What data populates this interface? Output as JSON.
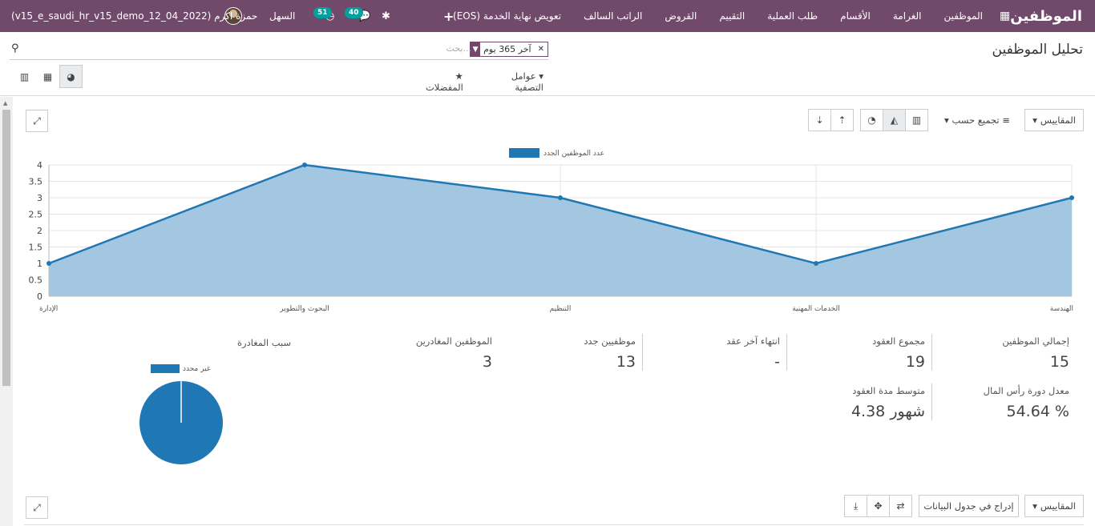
{
  "navbar": {
    "app_title": "الموظفين",
    "menu": [
      "الموظفين",
      "الغرامة",
      "الأقسام",
      "طلب العملية",
      "التقييم",
      "القروض",
      "الراتب السالف",
      "تعويض نهاية الخدمة (EOS)"
    ],
    "plus": "+",
    "company": "السهل",
    "user": "حمزة اكرم (v15_e_saudi_hr_v15_demo_12_04_2022)",
    "messages_count": "40",
    "activities_count": "51",
    "icons": [
      "grid-icon",
      "plus-icon",
      "bug-icon",
      "chat-icon",
      "clock-icon",
      "avatar"
    ]
  },
  "control_panel": {
    "title": "تحليل الموظفين",
    "search_placeholder": "بحث...",
    "facet_value": "آخر 365 يوم",
    "filters_label": "عوامل التصفية",
    "favorites_label": "المفضلات",
    "views": [
      "dashboard",
      "pivot",
      "graph"
    ]
  },
  "section1": {
    "measures_label": "المقاييس",
    "group_by_label": "تجميع حسب",
    "chart_types": [
      "bar-chart-icon",
      "area-chart-icon",
      "pie-chart-icon"
    ],
    "sort_icons": [
      "sort-desc-icon",
      "sort-asc-icon"
    ]
  },
  "chart_data": [
    {
      "type": "line",
      "area": true,
      "categories": [
        "الإدارة",
        "البحوث والتطوير",
        "التنظيم",
        "الخدمات المهنية",
        "الهندسة"
      ],
      "series": [
        {
          "name": "عدد الموظفين الجدد",
          "values": [
            1,
            4,
            3,
            1,
            3
          ]
        }
      ],
      "yticks": [
        "0",
        "0.5",
        "1",
        "1.5",
        "2",
        "2.5",
        "3",
        "3.5",
        "4"
      ],
      "ylim": [
        0,
        4
      ],
      "grid": true,
      "legend": "top-center",
      "color": "#1f77b4",
      "fill": "#a3c6e1"
    },
    {
      "type": "pie",
      "title": "سبب المغادرة",
      "labels": [
        "غير محدد"
      ],
      "values": [
        3
      ],
      "legend": "top",
      "color": "#1f77b4"
    }
  ],
  "kpis": [
    {
      "label": "إجمالي الموظفين",
      "value": "15"
    },
    {
      "label": "مجموع العقود",
      "value": "19"
    },
    {
      "label": "انتهاء آخر عقد",
      "value": "-"
    },
    {
      "label": "موظفيين جدد",
      "value": "13"
    },
    {
      "label": "الموظفين المغادرين",
      "value": "3"
    },
    {
      "label": "معدل دورة رأس المال",
      "value": "54.64 %"
    },
    {
      "label": "متوسط مدة العقود",
      "value": "4.38 شهور"
    }
  ],
  "section2": {
    "measures_label": "المقاييس",
    "insert_label": "إدراج في جدول البيانات"
  }
}
